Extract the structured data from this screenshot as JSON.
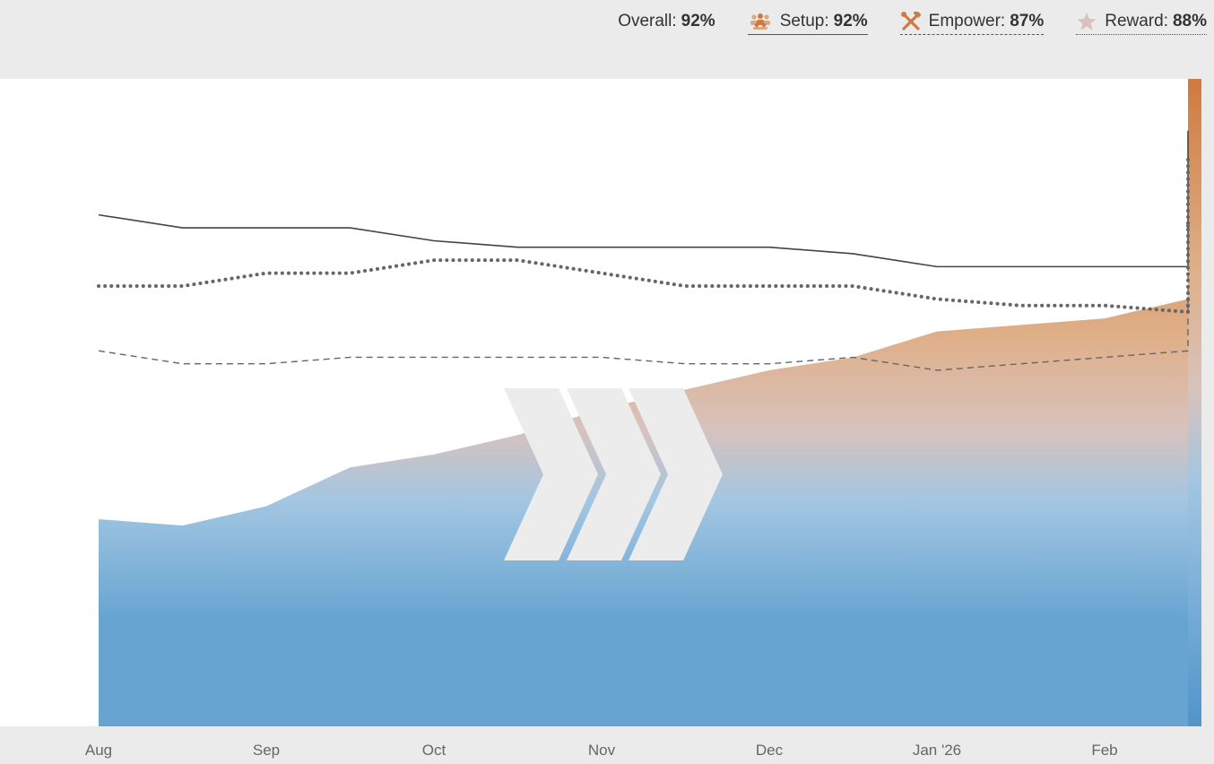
{
  "legend": {
    "overall": {
      "label": "Overall:",
      "value": "92%"
    },
    "setup": {
      "label": "Setup:",
      "value": "92%",
      "icon": "people-group-icon"
    },
    "empower": {
      "label": "Empower:",
      "value": "87%",
      "icon": "tools-icon"
    },
    "reward": {
      "label": "Reward:",
      "value": "88%",
      "icon": "star-icon"
    }
  },
  "colors": {
    "orange": "#cf7a3e",
    "peach": "#dfb08a",
    "pink": "#d8c2bd",
    "blue_light": "#a3c6e1",
    "blue": "#68a4d2",
    "line": "#444444"
  },
  "chart_data": {
    "type": "area",
    "title": "",
    "xlabel": "",
    "ylabel": "",
    "ylim": [
      0,
      100
    ],
    "x_ticks": [
      "Aug",
      "Sep",
      "Oct",
      "Nov",
      "Dec",
      "Jan '26",
      "Feb"
    ],
    "x": [
      0,
      0.5,
      1,
      1.5,
      2,
      2.5,
      3,
      3.5,
      4,
      4.5,
      5,
      5.5,
      6,
      6.5,
      7,
      7.5,
      8,
      8.5,
      9,
      9.5,
      10,
      10.5,
      11,
      11.5,
      12,
      12.5,
      13,
      13.5,
      14,
      14.5,
      15,
      15.5
    ],
    "series": [
      {
        "name": "Overall",
        "style": "area",
        "values": [
          32,
          31,
          34,
          40,
          42,
          45,
          49,
          52,
          55,
          57,
          61,
          62,
          63,
          66,
          68,
          69,
          70,
          73,
          77,
          78,
          84,
          83,
          87,
          89,
          92,
          91,
          89,
          90,
          90,
          91,
          91,
          91
        ]
      },
      {
        "name": "Setup",
        "style": "solid",
        "values": [
          79,
          77,
          77,
          77,
          75,
          74,
          74,
          74,
          74,
          73,
          71,
          71,
          71,
          71,
          71,
          72,
          71,
          71,
          73,
          75,
          80,
          80,
          84,
          85,
          88,
          89,
          89,
          90,
          91,
          92,
          92,
          92
        ]
      },
      {
        "name": "Empower",
        "style": "dashed",
        "values": [
          58,
          56,
          56,
          57,
          57,
          57,
          57,
          56,
          56,
          57,
          55,
          56,
          57,
          58,
          59,
          61,
          61,
          61,
          64,
          66,
          74,
          76,
          79,
          78,
          83,
          82,
          84,
          85,
          86,
          86,
          86,
          87
        ]
      },
      {
        "name": "Reward",
        "style": "dotted",
        "values": [
          68,
          68,
          70,
          70,
          72,
          72,
          70,
          68,
          68,
          68,
          66,
          65,
          65,
          64,
          64,
          65,
          66,
          65,
          64,
          68,
          74,
          74,
          78,
          77,
          82,
          84,
          85,
          87,
          87,
          87,
          88,
          88
        ]
      }
    ]
  }
}
